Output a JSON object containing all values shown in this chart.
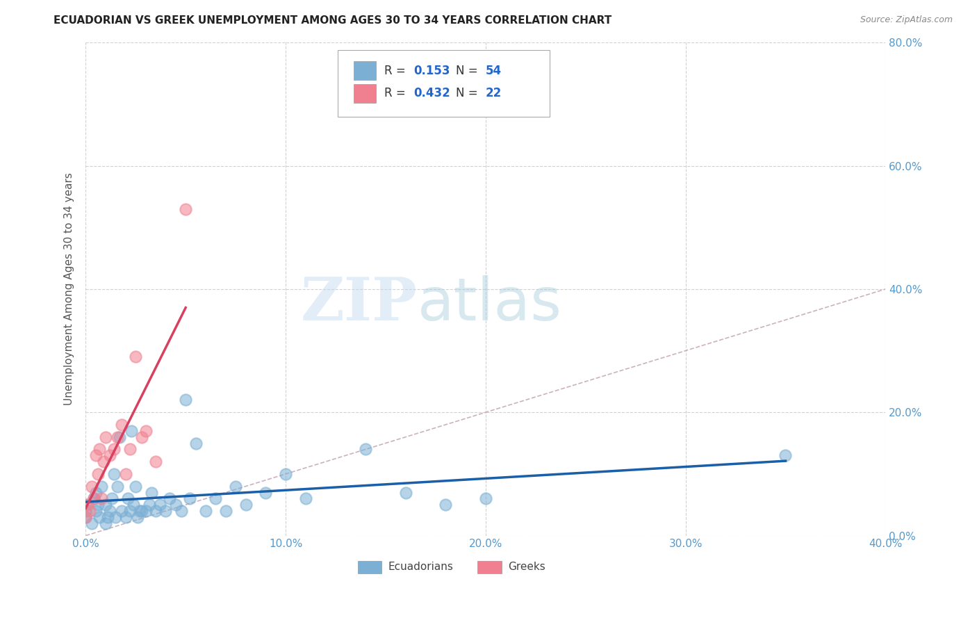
{
  "title": "ECUADORIAN VS GREEK UNEMPLOYMENT AMONG AGES 30 TO 34 YEARS CORRELATION CHART",
  "source": "Source: ZipAtlas.com",
  "ylabel": "Unemployment Among Ages 30 to 34 years",
  "xlim": [
    0.0,
    0.4
  ],
  "ylim": [
    0.0,
    0.8
  ],
  "xticks": [
    0.0,
    0.1,
    0.2,
    0.3,
    0.4
  ],
  "yticks": [
    0.0,
    0.2,
    0.4,
    0.6,
    0.8
  ],
  "xticklabels": [
    "0.0%",
    "10.0%",
    "20.0%",
    "30.0%",
    "40.0%"
  ],
  "yticklabels": [
    "0.0%",
    "20.0%",
    "40.0%",
    "60.0%",
    "80.0%"
  ],
  "ecuadorians_x": [
    0.0,
    0.0,
    0.0,
    0.003,
    0.004,
    0.005,
    0.005,
    0.006,
    0.007,
    0.008,
    0.01,
    0.01,
    0.011,
    0.012,
    0.013,
    0.014,
    0.015,
    0.016,
    0.017,
    0.018,
    0.02,
    0.021,
    0.022,
    0.023,
    0.024,
    0.025,
    0.026,
    0.027,
    0.028,
    0.03,
    0.032,
    0.033,
    0.035,
    0.037,
    0.04,
    0.042,
    0.045,
    0.048,
    0.05,
    0.052,
    0.055,
    0.06,
    0.065,
    0.07,
    0.075,
    0.08,
    0.09,
    0.1,
    0.11,
    0.14,
    0.16,
    0.18,
    0.2,
    0.35
  ],
  "ecuadorians_y": [
    0.03,
    0.04,
    0.05,
    0.02,
    0.06,
    0.04,
    0.07,
    0.05,
    0.03,
    0.08,
    0.02,
    0.05,
    0.03,
    0.04,
    0.06,
    0.1,
    0.03,
    0.08,
    0.16,
    0.04,
    0.03,
    0.06,
    0.04,
    0.17,
    0.05,
    0.08,
    0.03,
    0.04,
    0.04,
    0.04,
    0.05,
    0.07,
    0.04,
    0.05,
    0.04,
    0.06,
    0.05,
    0.04,
    0.22,
    0.06,
    0.15,
    0.04,
    0.06,
    0.04,
    0.08,
    0.05,
    0.07,
    0.1,
    0.06,
    0.14,
    0.07,
    0.05,
    0.06,
    0.13
  ],
  "greeks_x": [
    0.0,
    0.001,
    0.002,
    0.003,
    0.004,
    0.005,
    0.006,
    0.007,
    0.008,
    0.009,
    0.01,
    0.012,
    0.014,
    0.016,
    0.018,
    0.02,
    0.022,
    0.025,
    0.028,
    0.03,
    0.035,
    0.05
  ],
  "greeks_y": [
    0.03,
    0.05,
    0.04,
    0.08,
    0.06,
    0.13,
    0.1,
    0.14,
    0.06,
    0.12,
    0.16,
    0.13,
    0.14,
    0.16,
    0.18,
    0.1,
    0.14,
    0.29,
    0.16,
    0.17,
    0.12,
    0.53
  ],
  "ecu_color": "#7bafd4",
  "greek_color": "#f08090",
  "ecu_line_color": "#1a5fa8",
  "greek_line_color": "#d94060",
  "diag_line_color": "#c8a8b8",
  "watermark_zip": "ZIP",
  "watermark_atlas": "atlas",
  "background_color": "#ffffff",
  "grid_color": "#cccccc",
  "tick_color": "#5599cc",
  "title_color": "#222222",
  "source_color": "#888888",
  "ylabel_color": "#555555"
}
